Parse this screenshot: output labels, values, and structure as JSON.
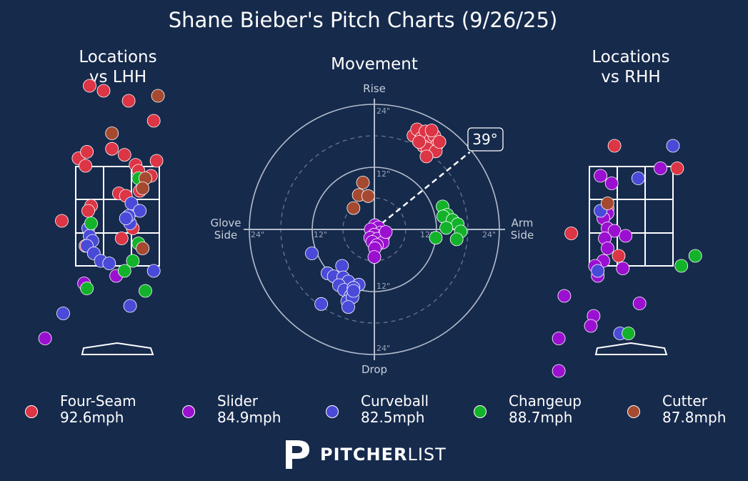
{
  "title": "Shane Bieber's Pitch Charts (9/26/25)",
  "panels": {
    "lhh": {
      "title_line1": "Locations",
      "title_line2": "vs LHH"
    },
    "movement": {
      "title": "Movement"
    },
    "rhh": {
      "title_line1": "Locations",
      "title_line2": "vs RHH"
    }
  },
  "polar": {
    "labels": {
      "top": "Rise",
      "bottom": "Drop",
      "left_line1": "Glove",
      "left_line2": "Side",
      "right_line1": "Arm",
      "right_line2": "Side"
    },
    "ring_labels": [
      "12\"",
      "24\""
    ],
    "angle_label": "39°",
    "arm_angle_deg": 39
  },
  "colors": {
    "background": "#162a4c",
    "four_seam": "#dc3545",
    "slider": "#9b10d0",
    "curveball": "#4a4ad8",
    "changeup": "#12b32a",
    "cutter": "#a54a30"
  },
  "legend": [
    {
      "key": "four_seam",
      "name": "Four-Seam",
      "speed": "92.6mph"
    },
    {
      "key": "slider",
      "name": "Slider",
      "speed": "84.9mph"
    },
    {
      "key": "curveball",
      "name": "Curveball",
      "speed": "82.5mph"
    },
    {
      "key": "changeup",
      "name": "Changeup",
      "speed": "88.7mph"
    },
    {
      "key": "cutter",
      "name": "Cutter",
      "speed": "87.8mph"
    }
  ],
  "brand": {
    "bold": "PITCHER",
    "light": "LIST"
  },
  "chart_data": [
    {
      "type": "scatter",
      "title": "Locations vs LHH",
      "xlabel": "",
      "ylabel": "",
      "xlim": [
        -2.6,
        2.6
      ],
      "ylim": [
        -0.6,
        5.2
      ],
      "series": [
        {
          "name": "Four-Seam",
          "key": "four_seam",
          "points": [
            [
              -1.0,
              5.1
            ],
            [
              -0.5,
              5.0
            ],
            [
              0.4,
              4.8
            ],
            [
              1.3,
              4.4
            ],
            [
              -1.4,
              3.65
            ],
            [
              -1.1,
              3.78
            ],
            [
              -0.2,
              3.84
            ],
            [
              0.25,
              3.72
            ],
            [
              0.65,
              3.52
            ],
            [
              -1.15,
              3.5
            ],
            [
              0.75,
              3.4
            ],
            [
              1.2,
              3.3
            ],
            [
              1.4,
              3.6
            ],
            [
              0.8,
              3.0
            ],
            [
              0.05,
              2.95
            ],
            [
              0.3,
              2.9
            ],
            [
              0.65,
              2.62
            ],
            [
              -0.95,
              2.7
            ],
            [
              -2.0,
              2.4
            ],
            [
              -1.05,
              2.6
            ],
            [
              0.55,
              2.25
            ],
            [
              0.15,
              2.05
            ],
            [
              -1.15,
              1.9
            ]
          ]
        },
        {
          "name": "Slider",
          "key": "slider",
          "points": [
            [
              -0.05,
              1.3
            ],
            [
              -1.2,
              1.15
            ],
            [
              -2.6,
              0.05
            ]
          ]
        },
        {
          "name": "Curveball",
          "key": "curveball",
          "points": [
            [
              0.5,
              2.75
            ],
            [
              0.8,
              2.6
            ],
            [
              0.45,
              2.35
            ],
            [
              -1.05,
              2.25
            ],
            [
              -1.0,
              2.1
            ],
            [
              -0.9,
              2.0
            ],
            [
              -1.1,
              1.9
            ],
            [
              0.4,
              2.5
            ],
            [
              0.3,
              2.45
            ],
            [
              -0.85,
              1.75
            ],
            [
              -0.6,
              1.6
            ],
            [
              -0.3,
              1.55
            ],
            [
              1.3,
              1.4
            ],
            [
              0.45,
              0.7
            ],
            [
              -1.95,
              0.55
            ]
          ]
        },
        {
          "name": "Changeup",
          "key": "changeup",
          "points": [
            [
              0.75,
              3.25
            ],
            [
              -0.95,
              2.35
            ],
            [
              0.75,
              1.95
            ],
            [
              0.55,
              1.6
            ],
            [
              0.25,
              1.4
            ],
            [
              1.0,
              1.0
            ],
            [
              -1.1,
              1.05
            ]
          ]
        },
        {
          "name": "Cutter",
          "key": "cutter",
          "points": [
            [
              -0.2,
              4.15
            ],
            [
              1.45,
              4.9
            ],
            [
              1.0,
              3.25
            ],
            [
              0.9,
              3.05
            ],
            [
              0.9,
              1.85
            ]
          ]
        }
      ]
    },
    {
      "type": "scatter",
      "title": "Movement",
      "xlabel": "Glove Side / Arm Side",
      "ylabel": "Drop / Rise",
      "xlim": [
        -24,
        24
      ],
      "ylim": [
        -24,
        24
      ],
      "series": [
        {
          "name": "Four-Seam",
          "key": "four_seam",
          "points": [
            [
              7.5,
              18.0
            ],
            [
              8.2,
              19.2
            ],
            [
              9.0,
              17.5
            ],
            [
              9.8,
              18.8
            ],
            [
              10.8,
              17.2
            ],
            [
              11.5,
              18.0
            ],
            [
              12.0,
              16.2
            ],
            [
              11.0,
              19.0
            ],
            [
              9.4,
              16.0
            ],
            [
              10.2,
              15.5
            ],
            [
              11.8,
              15.0
            ],
            [
              10.0,
              14.0
            ],
            [
              12.5,
              16.8
            ],
            [
              8.6,
              16.8
            ]
          ]
        },
        {
          "name": "Slider",
          "key": "slider",
          "points": [
            [
              0.1,
              0.8
            ],
            [
              0.8,
              0.4
            ],
            [
              -0.7,
              0.0
            ],
            [
              1.2,
              -0.6
            ],
            [
              0.0,
              -1.0
            ],
            [
              -0.8,
              -1.6
            ],
            [
              1.8,
              -1.2
            ],
            [
              0.6,
              -1.8
            ],
            [
              -0.4,
              -2.4
            ],
            [
              1.6,
              -2.5
            ],
            [
              0.5,
              -3.0
            ],
            [
              0.1,
              -3.6
            ],
            [
              0.0,
              -5.3
            ],
            [
              2.2,
              -0.5
            ]
          ]
        },
        {
          "name": "Curveball",
          "key": "curveball",
          "points": [
            [
              -12.0,
              -4.6
            ],
            [
              -9.0,
              -8.4
            ],
            [
              -6.2,
              -7.0
            ],
            [
              -7.8,
              -9.0
            ],
            [
              -6.0,
              -9.2
            ],
            [
              -5.0,
              -10.0
            ],
            [
              -3.0,
              -10.6
            ],
            [
              -6.8,
              -10.7
            ],
            [
              -5.8,
              -11.6
            ],
            [
              -4.0,
              -11.2
            ],
            [
              -4.6,
              -12.8
            ],
            [
              -5.2,
              -13.8
            ],
            [
              -4.2,
              -13.0
            ],
            [
              -5.0,
              -14.9
            ],
            [
              -10.2,
              -14.3
            ],
            [
              -4.0,
              -11.8
            ]
          ]
        },
        {
          "name": "Changeup",
          "key": "changeup",
          "points": [
            [
              13.1,
              4.4
            ],
            [
              14.0,
              2.8
            ],
            [
              13.2,
              2.5
            ],
            [
              15.0,
              1.8
            ],
            [
              16.0,
              1.0
            ],
            [
              13.8,
              0.3
            ],
            [
              16.6,
              -0.4
            ],
            [
              11.8,
              -1.6
            ],
            [
              15.8,
              -1.9
            ]
          ]
        },
        {
          "name": "Cutter",
          "key": "cutter",
          "points": [
            [
              -2.2,
              9.0
            ],
            [
              -3.0,
              6.6
            ],
            [
              -1.2,
              6.4
            ],
            [
              -4.0,
              4.1
            ]
          ]
        }
      ]
    },
    {
      "type": "scatter",
      "title": "Locations vs RHH",
      "xlabel": "",
      "ylabel": "",
      "xlim": [
        -2.6,
        2.6
      ],
      "ylim": [
        -0.6,
        5.2
      ],
      "series": [
        {
          "name": "Four-Seam",
          "key": "four_seam",
          "points": [
            [
              -0.6,
              3.9
            ],
            [
              1.65,
              3.45
            ],
            [
              -0.85,
              2.65
            ],
            [
              -2.15,
              2.15
            ],
            [
              -0.45,
              1.7
            ]
          ]
        },
        {
          "name": "Slider",
          "key": "slider",
          "points": [
            [
              1.05,
              3.45
            ],
            [
              -1.1,
              3.3
            ],
            [
              -0.7,
              3.15
            ],
            [
              -0.85,
              2.55
            ],
            [
              -1.0,
              2.45
            ],
            [
              -0.85,
              2.25
            ],
            [
              -0.6,
              2.2
            ],
            [
              -0.95,
              2.05
            ],
            [
              -0.2,
              2.1
            ],
            [
              -0.85,
              1.85
            ],
            [
              -1.0,
              1.6
            ],
            [
              -1.3,
              1.5
            ],
            [
              -1.2,
              1.3
            ],
            [
              -0.3,
              1.45
            ],
            [
              -2.4,
              0.9
            ],
            [
              0.3,
              0.75
            ],
            [
              -1.35,
              0.5
            ],
            [
              -1.45,
              0.3
            ],
            [
              -2.6,
              0.05
            ],
            [
              -2.6,
              -0.6
            ]
          ]
        },
        {
          "name": "Curveball",
          "key": "curveball",
          "points": [
            [
              1.5,
              3.9
            ],
            [
              0.25,
              3.25
            ],
            [
              -1.1,
              2.6
            ],
            [
              -1.2,
              1.4
            ],
            [
              -0.4,
              0.15
            ]
          ]
        },
        {
          "name": "Changeup",
          "key": "changeup",
          "points": [
            [
              2.3,
              1.7
            ],
            [
              1.8,
              1.5
            ],
            [
              -0.1,
              0.15
            ]
          ]
        },
        {
          "name": "Cutter",
          "key": "cutter",
          "points": [
            [
              -0.85,
              2.75
            ]
          ]
        }
      ]
    }
  ]
}
